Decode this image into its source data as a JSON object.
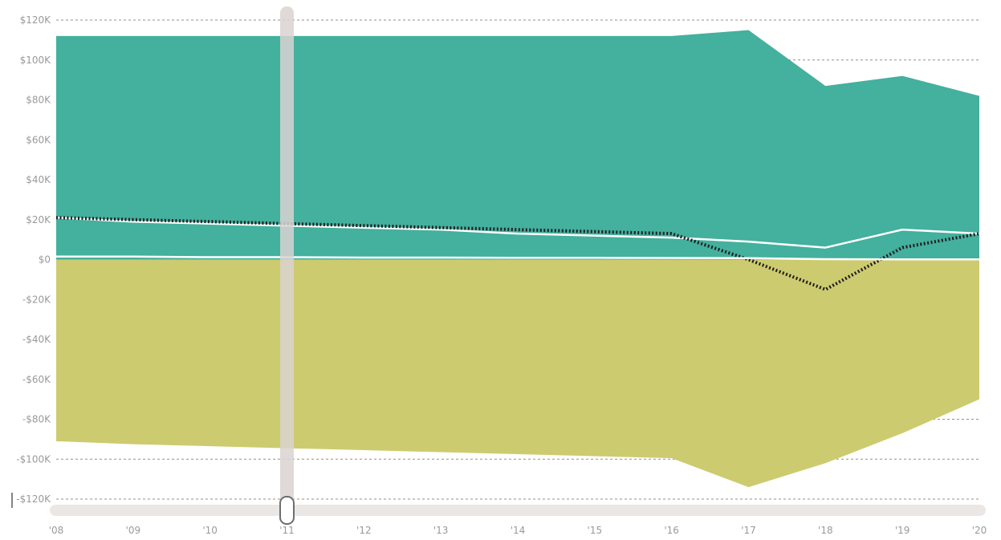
{
  "chart_data": {
    "type": "area",
    "title": "",
    "xlabel": "",
    "ylabel": "",
    "x": [
      "'08",
      "'09",
      "'10",
      "'11",
      "'12",
      "'13",
      "'14",
      "'15",
      "'16",
      "'17",
      "'18",
      "'19",
      "'20"
    ],
    "y_ticks": [
      "$120K",
      "$100K",
      "$80K",
      "$60K",
      "$40K",
      "$20K",
      "$0",
      "-$20K",
      "-$40K",
      "-$60K",
      "-$80K",
      "-$100K",
      "-$120K"
    ],
    "y_tick_values": [
      120000,
      100000,
      80000,
      60000,
      40000,
      20000,
      0,
      -20000,
      -40000,
      -60000,
      -80000,
      -100000,
      -120000
    ],
    "ylim": [
      -120000,
      120000
    ],
    "grid": true,
    "series": [
      {
        "kind": "area",
        "color": "#44b09e",
        "values": [
          112000,
          112000,
          112000,
          112000,
          112000,
          112000,
          112000,
          112000,
          112000,
          115000,
          87000,
          92000,
          82000
        ]
      },
      {
        "kind": "area",
        "color": "#cdcb6f",
        "values": [
          -91000,
          -92500,
          -93500,
          -94500,
          -95500,
          -96500,
          -97500,
          -98500,
          -99500,
          -114000,
          -102000,
          -87000,
          -70000
        ]
      },
      {
        "kind": "line",
        "color": "#ffffff",
        "style": "solid",
        "values": [
          21000,
          19000,
          18000,
          17000,
          16000,
          15000,
          13000,
          12000,
          11000,
          9000,
          6000,
          15000,
          13000
        ]
      },
      {
        "kind": "line",
        "color": "#1f1f1f",
        "style": "dotted",
        "values": [
          21000,
          20000,
          19000,
          18000,
          17000,
          16000,
          15000,
          14000,
          13000,
          0,
          -15000,
          6000,
          13000
        ]
      },
      {
        "kind": "line",
        "color": "#ffffff",
        "style": "solid",
        "values": [
          1500,
          1500,
          1200,
          1200,
          1000,
          1000,
          900,
          900,
          800,
          700,
          200,
          100,
          100
        ]
      }
    ],
    "range_slider": {
      "position": "'11"
    }
  }
}
